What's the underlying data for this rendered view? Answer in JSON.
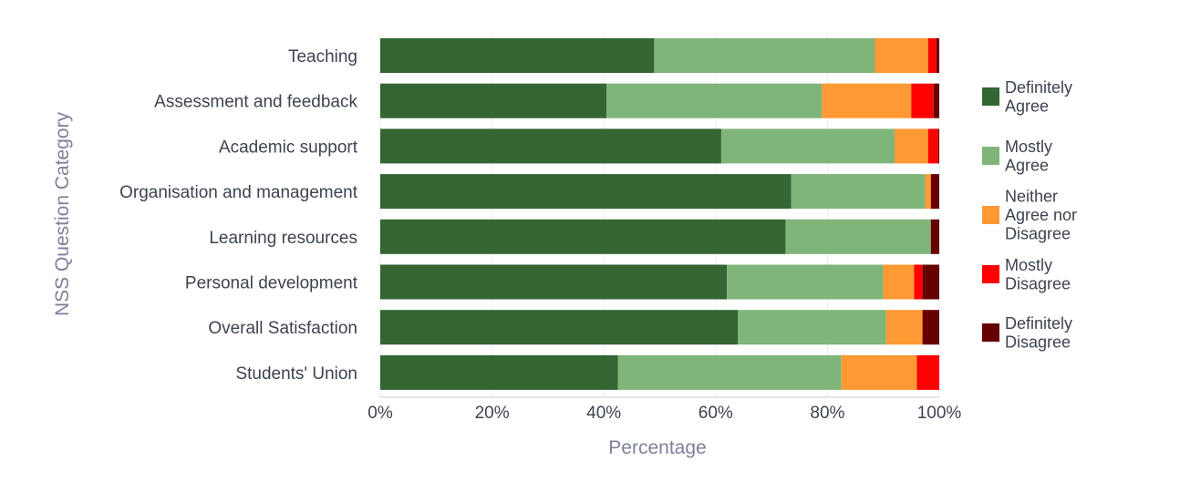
{
  "chart_data": {
    "type": "bar",
    "orientation": "horizontal",
    "stacked": true,
    "title": "",
    "xlabel": "Percentage",
    "ylabel": "NSS Question Category",
    "xlim": [
      0,
      100
    ],
    "x_ticks": [
      "0%",
      "20%",
      "40%",
      "60%",
      "80%",
      "100%"
    ],
    "grid": true,
    "legend_position": "right",
    "categories": [
      "Teaching",
      "Assessment and feedback",
      "Academic support",
      "Organisation and management",
      "Learning resources",
      "Personal development",
      "Overall Satisfaction",
      "Students' Union"
    ],
    "series": [
      {
        "name": "Definitely Agree",
        "legend_lines": [
          "Definitely",
          "Agree"
        ],
        "color": "#346634",
        "values": [
          49,
          40.5,
          61,
          73.5,
          72.5,
          62,
          64,
          42.5
        ]
      },
      {
        "name": "Mostly Agree",
        "legend_lines": [
          "Mostly",
          "Agree"
        ],
        "color": "#80b57a",
        "values": [
          39.5,
          38.5,
          31,
          24,
          26,
          28,
          26.5,
          40
        ]
      },
      {
        "name": "Neither Agree nor Disagree",
        "legend_lines": [
          "Neither",
          "Agree nor",
          "Disagree"
        ],
        "color": "#ff9933",
        "values": [
          9.5,
          16,
          6,
          1,
          0,
          5.5,
          6.5,
          13.5
        ]
      },
      {
        "name": "Mostly Disagree",
        "legend_lines": [
          "Mostly",
          "Disagree"
        ],
        "color": "#ff0000",
        "values": [
          1.5,
          4,
          1.8,
          0,
          0,
          1.5,
          0,
          4
        ]
      },
      {
        "name": "Definitely Disagree",
        "legend_lines": [
          "Definitely",
          "Disagree"
        ],
        "color": "#660000",
        "values": [
          0.5,
          1,
          0.2,
          1.5,
          1.5,
          3,
          3,
          0
        ]
      }
    ]
  }
}
